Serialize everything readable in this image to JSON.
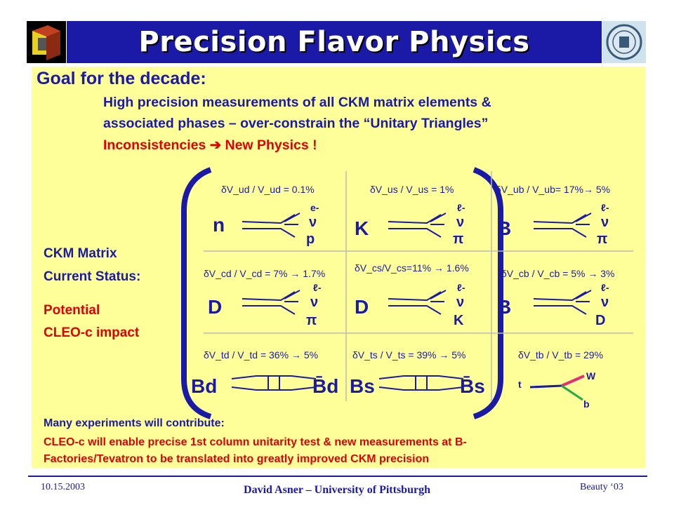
{
  "title": "Precision Flavor Physics",
  "goal": {
    "heading": "Goal for the decade:",
    "line1": "High precision measurements of all CKM matrix elements &",
    "line2": "associated phases – over-constrain the “Unitary Triangles”",
    "line3": "Inconsistencies ➔ New Physics !"
  },
  "side": {
    "ckm1": "CKM Matrix",
    "ckm2": "Current Status:",
    "pot1": "Potential",
    "pot2": "CLEO-c impact"
  },
  "cells": [
    {
      "label": "δV_ud / V_ud = 0.1%",
      "big": "n",
      "products": [
        "e-",
        "ν",
        "p"
      ]
    },
    {
      "label": "δV_us / V_us = 1%",
      "big": "K",
      "products": [
        "ℓ-",
        "ν",
        "π"
      ]
    },
    {
      "label": "δV_ub / V_ub= 17%→ 5%",
      "big": "B",
      "products": [
        "ℓ-",
        "ν",
        "π"
      ]
    },
    {
      "label": "δV_cd / V_cd = 7% → 1.7%",
      "big": "D",
      "products": [
        "ℓ-",
        "ν",
        "π"
      ]
    },
    {
      "label": "δV_cs/V_cs=11% → 1.6%",
      "big": "D",
      "products": [
        "ℓ-",
        "ν",
        "K"
      ]
    },
    {
      "label": "δV_cb / V_cb = 5% → 3%",
      "big": "B",
      "products": [
        "ℓ-",
        "ν",
        "D"
      ]
    },
    {
      "label": "δV_td / V_td = 36% → 5%",
      "big": "Bd",
      "products": [
        "B̄d"
      ]
    },
    {
      "label": "δV_ts / V_ts = 39% → 5%",
      "big": "Bs",
      "products": [
        "B̄s"
      ]
    },
    {
      "label": "δV_tb / V_tb = 29%",
      "big": "",
      "products": [
        "t",
        "W",
        "b"
      ]
    }
  ],
  "note": {
    "head": "Many experiments will contribute:",
    "line1": "CLEO-c will enable precise 1st column unitarity test & new measurements at B-",
    "line2": "Factories/Tevatron to be translated into greatly improved CKM precision"
  },
  "footer": {
    "date": "10.15.2003",
    "author": "David Asner – University of Pittsburgh",
    "conference": "Beauty ‘03"
  },
  "colors": {
    "title_bar": "#1a1aa6",
    "panel": "#ffff99",
    "text": "#1a1aa6",
    "accent": "#e00000"
  }
}
